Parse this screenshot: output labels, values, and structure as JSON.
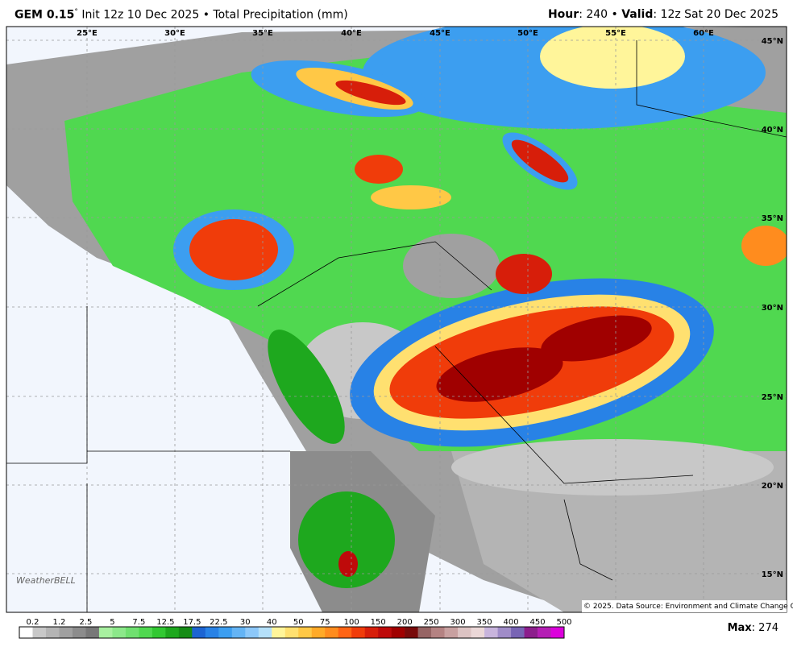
{
  "header": {
    "model": "GEM 0.15",
    "degree": "°",
    "init": "Init 12z 10 Dec 2025 • Total Precipitation (mm)",
    "hour_label": "Hour",
    "hour_value": ": 240 • ",
    "valid_label": "Valid",
    "valid_value": ": 12z Sat 20 Dec 2025"
  },
  "lon_labels": [
    "25°E",
    "30°E",
    "35°E",
    "40°E",
    "45°E",
    "50°E",
    "55°E",
    "60°E"
  ],
  "lat_labels": [
    "45°N",
    "40°N",
    "35°N",
    "30°N",
    "25°N",
    "20°N",
    "15°N"
  ],
  "copyright": "© 2025. Data Source: Environment and Climate Change Canada.",
  "logo": "WeatherBELL",
  "colorbar": {
    "labels": [
      0.2,
      1.2,
      2.5,
      5,
      7.5,
      12.5,
      17.5,
      22.5,
      30,
      40,
      50,
      75,
      100,
      150,
      200,
      250,
      300,
      350,
      400,
      450,
      500
    ],
    "colors": [
      "#ffffff",
      "#c8c8c8",
      "#b4b4b4",
      "#a0a0a0",
      "#8c8c8c",
      "#787878",
      "#a8f0a0",
      "#8ce88a",
      "#70e070",
      "#50d850",
      "#32c832",
      "#1ea81e",
      "#168c16",
      "#1c64d2",
      "#2882e6",
      "#3c9ef0",
      "#64b4f5",
      "#8cc8fa",
      "#b4e0fa",
      "#fff59a",
      "#ffe070",
      "#ffc846",
      "#ffaa28",
      "#ff8c1e",
      "#ff6414",
      "#f03c0a",
      "#d71e0a",
      "#be0a0a",
      "#a00000",
      "#780a0a",
      "#966464",
      "#b48282",
      "#c8a0a0",
      "#dcc3c3",
      "#ebd7d7",
      "#c8b4dc",
      "#a08cc8",
      "#7864b4",
      "#8c1e8c",
      "#b41eb4",
      "#dc00dc"
    ]
  },
  "max": {
    "label": "Max",
    "value": ": 274"
  }
}
